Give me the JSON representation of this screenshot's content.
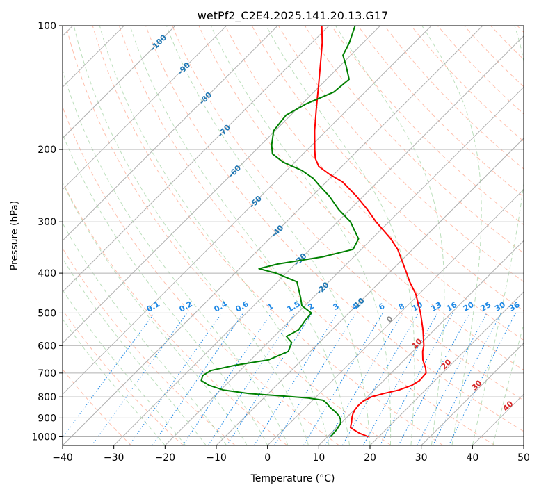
{
  "chart_data": {
    "type": "line",
    "subtype": "skew-T log-P diagram",
    "title": "wetPf2_C2E4.2025.141.20.13.G17",
    "xlabel": "Temperature (°C)",
    "ylabel": "Pressure (hPa)",
    "xlim": [
      -40,
      50
    ],
    "ylim": [
      1050,
      100
    ],
    "y_scale": "log",
    "x_ticks": [
      -40,
      -30,
      -20,
      -10,
      0,
      10,
      20,
      30,
      40,
      50
    ],
    "y_ticks": [
      100,
      200,
      300,
      400,
      500,
      600,
      700,
      800,
      900,
      1000
    ],
    "grid": true,
    "colors": {
      "temperature": "#ff0000",
      "dewpoint": "#008000",
      "isotherm_labels": "#1f77b4",
      "mixing_ratio": "#1e88e5",
      "wet_bulb_labels": "#d62728",
      "dry_adiabat": "#ff8c69",
      "moist_adiabat": "#90c990",
      "grid": "#b0b0b0"
    },
    "isotherm_labels": [
      "-100",
      "-90",
      "-80",
      "-70",
      "-60",
      "-50",
      "-40",
      "-30",
      "-20",
      "-10"
    ],
    "mixing_ratio_labels": [
      "0.1",
      "0.2",
      "0.4",
      "0.6",
      "1",
      "1.5",
      "2",
      "3",
      "4",
      "6",
      "8",
      "10",
      "13",
      "16",
      "20",
      "25",
      "30",
      "36"
    ],
    "wet_bulb_labels": [
      "0",
      "10",
      "20",
      "30",
      "40"
    ],
    "series": [
      {
        "name": "Temperature",
        "data": [
          {
            "p": 1000,
            "t": 18.0
          },
          {
            "p": 980,
            "t": 15.5
          },
          {
            "p": 950,
            "t": 12.7
          },
          {
            "p": 920,
            "t": 11.8
          },
          {
            "p": 900,
            "t": 11.1
          },
          {
            "p": 880,
            "t": 10.5
          },
          {
            "p": 860,
            "t": 10.1
          },
          {
            "p": 840,
            "t": 9.9
          },
          {
            "p": 820,
            "t": 10.0
          },
          {
            "p": 800,
            "t": 10.8
          },
          {
            "p": 785,
            "t": 12.5
          },
          {
            "p": 770,
            "t": 14.8
          },
          {
            "p": 750,
            "t": 16.4
          },
          {
            "p": 730,
            "t": 17.0
          },
          {
            "p": 700,
            "t": 16.8
          },
          {
            "p": 680,
            "t": 15.7
          },
          {
            "p": 650,
            "t": 13.6
          },
          {
            "p": 620,
            "t": 11.9
          },
          {
            "p": 600,
            "t": 11.0
          },
          {
            "p": 550,
            "t": 7.8
          },
          {
            "p": 500,
            "t": 4.0
          },
          {
            "p": 450,
            "t": -0.6
          },
          {
            "p": 420,
            "t": -4.2
          },
          {
            "p": 400,
            "t": -6.5
          },
          {
            "p": 350,
            "t": -12.9
          },
          {
            "p": 330,
            "t": -16.3
          },
          {
            "p": 300,
            "t": -22.5
          },
          {
            "p": 280,
            "t": -26.6
          },
          {
            "p": 260,
            "t": -31.3
          },
          {
            "p": 240,
            "t": -36.8
          },
          {
            "p": 230,
            "t": -40.8
          },
          {
            "p": 220,
            "t": -44.5
          },
          {
            "p": 210,
            "t": -46.8
          },
          {
            "p": 200,
            "t": -48.6
          },
          {
            "p": 180,
            "t": -52.3
          },
          {
            "p": 160,
            "t": -56.1
          },
          {
            "p": 140,
            "t": -60.3
          },
          {
            "p": 120,
            "t": -65.2
          },
          {
            "p": 110,
            "t": -68.0
          },
          {
            "p": 100,
            "t": -71.4
          }
        ]
      },
      {
        "name": "Dewpoint",
        "data": [
          {
            "p": 1000,
            "t": 10.6
          },
          {
            "p": 960,
            "t": 10.4
          },
          {
            "p": 930,
            "t": 10.0
          },
          {
            "p": 910,
            "t": 9.3
          },
          {
            "p": 890,
            "t": 8.2
          },
          {
            "p": 870,
            "t": 6.7
          },
          {
            "p": 850,
            "t": 4.9
          },
          {
            "p": 830,
            "t": 3.4
          },
          {
            "p": 815,
            "t": 2.0
          },
          {
            "p": 805,
            "t": -1.3
          },
          {
            "p": 795,
            "t": -7.4
          },
          {
            "p": 785,
            "t": -13.8
          },
          {
            "p": 770,
            "t": -19.4
          },
          {
            "p": 750,
            "t": -23.1
          },
          {
            "p": 730,
            "t": -25.6
          },
          {
            "p": 710,
            "t": -26.3
          },
          {
            "p": 690,
            "t": -25.7
          },
          {
            "p": 670,
            "t": -22.0
          },
          {
            "p": 650,
            "t": -16.5
          },
          {
            "p": 620,
            "t": -14.3
          },
          {
            "p": 590,
            "t": -15.4
          },
          {
            "p": 570,
            "t": -17.6
          },
          {
            "p": 550,
            "t": -16.5
          },
          {
            "p": 520,
            "t": -17.1
          },
          {
            "p": 500,
            "t": -17.3
          },
          {
            "p": 480,
            "t": -20.6
          },
          {
            "p": 460,
            "t": -22.3
          },
          {
            "p": 440,
            "t": -24.2
          },
          {
            "p": 420,
            "t": -26.2
          },
          {
            "p": 400,
            "t": -32.0
          },
          {
            "p": 390,
            "t": -36.2
          },
          {
            "p": 380,
            "t": -33.4
          },
          {
            "p": 365,
            "t": -26.1
          },
          {
            "p": 350,
            "t": -21.6
          },
          {
            "p": 330,
            "t": -22.6
          },
          {
            "p": 300,
            "t": -27.5
          },
          {
            "p": 280,
            "t": -32.2
          },
          {
            "p": 260,
            "t": -36.6
          },
          {
            "p": 245,
            "t": -40.6
          },
          {
            "p": 235,
            "t": -43.3
          },
          {
            "p": 225,
            "t": -47.0
          },
          {
            "p": 215,
            "t": -52.2
          },
          {
            "p": 205,
            "t": -56.0
          },
          {
            "p": 195,
            "t": -57.9
          },
          {
            "p": 180,
            "t": -60.3
          },
          {
            "p": 165,
            "t": -60.9
          },
          {
            "p": 155,
            "t": -59.2
          },
          {
            "p": 145,
            "t": -56.1
          },
          {
            "p": 135,
            "t": -55.6
          },
          {
            "p": 125,
            "t": -58.9
          },
          {
            "p": 118,
            "t": -61.5
          },
          {
            "p": 110,
            "t": -62.7
          },
          {
            "p": 100,
            "t": -64.9
          }
        ]
      }
    ]
  }
}
